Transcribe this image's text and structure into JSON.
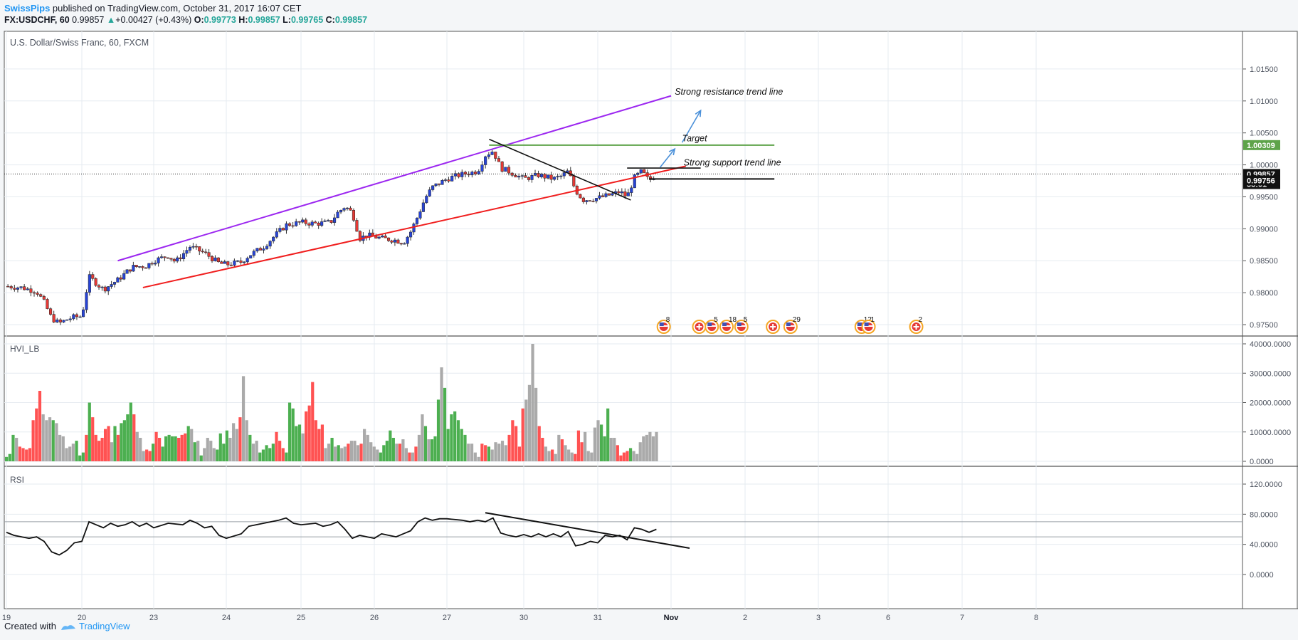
{
  "header": {
    "author": "SwissPips",
    "published": " published on TradingView.com, October 31, 2017 16:07 CET",
    "symbol": "FX:USDCHF, 60",
    "last": "0.99857",
    "change": "+0.00427 (+0.43%)",
    "o_label": "O:",
    "o": "0.99773",
    "h_label": "H:",
    "h": "0.99857",
    "l_label": "L:",
    "l": "0.99765",
    "c_label": "C:",
    "c": "0.99857"
  },
  "footer": {
    "created_with": "Created with",
    "brand": "TradingView"
  },
  "colors": {
    "up": "#2744d8",
    "down": "#e53935",
    "resistance": "#9c27f0",
    "support": "#f01e1e",
    "target": "#5ea34a",
    "arrow": "#4a90d9",
    "vol_up": "#4caf50",
    "vol_down": "#ff5252",
    "vol_neutral": "#aaaaaa"
  },
  "chart_data": [
    {
      "type": "candlestick",
      "title": "U.S. Dollar/Swiss Franc, 60, FXCM",
      "x_ticks": [
        "19",
        "20",
        "23",
        "24",
        "25",
        "26",
        "27",
        "30",
        "31",
        "Nov",
        "2",
        "3",
        "6",
        "7",
        "8"
      ],
      "y_ticks": [
        "1.01500",
        "1.01000",
        "1.00500",
        "1.00000",
        "0.99500",
        "0.99000",
        "0.98500",
        "0.98000",
        "0.97500"
      ],
      "ylim": [
        0.974,
        1.019
      ],
      "price_labels": [
        {
          "value": 1.00309,
          "text": "1.00309",
          "style": "target"
        },
        {
          "value": 0.99857,
          "text": "0.99857",
          "style": "black"
        },
        {
          "value": 0.997,
          "text": "53:01",
          "style": "black"
        },
        {
          "value": 0.99756,
          "text": "0.99756",
          "style": "black"
        }
      ],
      "close_path": [
        [
          0.0,
          0.981
        ],
        [
          0.2,
          0.9808
        ],
        [
          0.4,
          0.9802
        ],
        [
          0.5,
          0.9785
        ],
        [
          0.6,
          0.976
        ],
        [
          0.7,
          0.9752
        ],
        [
          0.8,
          0.9758
        ],
        [
          0.9,
          0.9762
        ],
        [
          1.0,
          0.9763
        ],
        [
          1.1,
          0.9825
        ],
        [
          1.2,
          0.9815
        ],
        [
          1.3,
          0.9805
        ],
        [
          1.5,
          0.982
        ],
        [
          1.7,
          0.984
        ],
        [
          1.9,
          0.9842
        ],
        [
          2.0,
          0.985
        ],
        [
          2.2,
          0.9858
        ],
        [
          2.3,
          0.9848
        ],
        [
          2.5,
          0.9872
        ],
        [
          2.7,
          0.9862
        ],
        [
          2.9,
          0.9846
        ],
        [
          3.0,
          0.9844
        ],
        [
          3.2,
          0.9848
        ],
        [
          3.3,
          0.9858
        ],
        [
          3.5,
          0.9872
        ],
        [
          3.7,
          0.9895
        ],
        [
          3.8,
          0.9906
        ],
        [
          4.0,
          0.991
        ],
        [
          4.2,
          0.9908
        ],
        [
          4.4,
          0.991
        ],
        [
          4.5,
          0.9925
        ],
        [
          4.6,
          0.9935
        ],
        [
          4.7,
          0.9925
        ],
        [
          4.8,
          0.9885
        ],
        [
          4.9,
          0.989
        ],
        [
          5.1,
          0.9885
        ],
        [
          5.3,
          0.9882
        ],
        [
          5.4,
          0.9878
        ],
        [
          5.5,
          0.9895
        ],
        [
          5.6,
          0.992
        ],
        [
          5.7,
          0.9948
        ],
        [
          5.8,
          0.9965
        ],
        [
          6.0,
          0.9978
        ],
        [
          6.1,
          0.9982
        ],
        [
          6.2,
          0.9985
        ],
        [
          6.4,
          0.999
        ],
        [
          6.5,
          1.0015
        ],
        [
          6.6,
          1.0022
        ],
        [
          6.7,
          0.9995
        ],
        [
          6.8,
          0.999
        ],
        [
          7.0,
          0.9978
        ],
        [
          7.2,
          0.9984
        ],
        [
          7.4,
          0.9978
        ],
        [
          7.5,
          0.9982
        ],
        [
          7.6,
          0.999
        ],
        [
          7.7,
          0.996
        ],
        [
          7.8,
          0.9945
        ],
        [
          8.0,
          0.9948
        ],
        [
          8.2,
          0.9954
        ],
        [
          8.3,
          0.9958
        ],
        [
          8.4,
          0.995
        ],
        [
          8.5,
          0.998
        ],
        [
          8.6,
          0.999
        ],
        [
          8.7,
          0.9975
        ],
        [
          8.8,
          0.9985
        ]
      ],
      "annotations": [
        {
          "text": "Strong resistance trend line",
          "x": 9.05,
          "y": 1.011
        },
        {
          "text": "Target",
          "x": 9.15,
          "y": 1.0037
        },
        {
          "text": "Strong support trend line",
          "x": 9.17,
          "y": 0.9999
        }
      ],
      "lines": [
        {
          "name": "resistance",
          "from": [
            1.5,
            0.985
          ],
          "to": [
            9.0,
            1.0108
          ]
        },
        {
          "name": "support",
          "from": [
            1.85,
            0.9808
          ],
          "to": [
            9.2,
            0.9998
          ]
        },
        {
          "name": "target",
          "from": [
            6.55,
            1.00309
          ],
          "to": [
            10.4,
            1.00309
          ]
        },
        {
          "name": "falling-wedge",
          "from": [
            6.55,
            1.004
          ],
          "to": [
            8.45,
            0.9945
          ]
        },
        {
          "name": "range-top",
          "from": [
            8.4,
            0.9995
          ],
          "to": [
            9.4,
            0.9995
          ]
        },
        {
          "name": "range-bottom",
          "from": [
            8.7,
            0.9978
          ],
          "to": [
            10.4,
            0.9978
          ]
        }
      ],
      "arrows": [
        {
          "from": [
            8.85,
            0.9996
          ],
          "to": [
            9.05,
            1.0025
          ]
        },
        {
          "from": [
            9.15,
            1.0035
          ],
          "to": [
            9.4,
            1.0085
          ]
        }
      ],
      "events": [
        {
          "x": 8.9,
          "label": "8",
          "kind": "us"
        },
        {
          "x": 9.38,
          "label": "",
          "kind": "ch"
        },
        {
          "x": 9.55,
          "label": "5",
          "kind": "us"
        },
        {
          "x": 9.75,
          "label": "18",
          "kind": "us"
        },
        {
          "x": 9.95,
          "label": "5",
          "kind": "us"
        },
        {
          "x": 10.38,
          "label": "",
          "kind": "ch"
        },
        {
          "x": 10.62,
          "label": "29",
          "kind": "us"
        },
        {
          "x": 11.62,
          "label": "12",
          "kind": "us"
        },
        {
          "x": 11.72,
          "label": "1",
          "kind": "us"
        },
        {
          "x": 12.38,
          "label": "2",
          "kind": "ch"
        }
      ]
    },
    {
      "type": "bar",
      "title": "HVI_LB",
      "y_ticks": [
        "40000.0000",
        "30000.0000",
        "20000.0000",
        "10000.0000",
        "0.0000"
      ],
      "ylim": [
        0,
        40000
      ],
      "values": [
        1500,
        2500,
        9000,
        8000,
        5000,
        4500,
        4000,
        4500,
        14000,
        18000,
        24000,
        16000,
        14000,
        15000,
        14000,
        13000,
        9000,
        8500,
        4500,
        5000,
        6000,
        7000,
        2000,
        3000,
        9000,
        20000,
        15000,
        9000,
        7000,
        8000,
        11000,
        12000,
        6500,
        12000,
        9000,
        13000,
        14000,
        16000,
        20000,
        16000,
        10000,
        8000,
        3500,
        4000,
        3500,
        6000,
        10000,
        8000,
        5000,
        8500,
        9000,
        8500,
        8500,
        8000,
        9000,
        9500,
        12000,
        11000,
        6500,
        7000,
        2000,
        4500,
        8000,
        7000,
        4500,
        4000,
        9500,
        6000,
        10500,
        8000,
        13000,
        11000,
        15000,
        29000,
        14000,
        9000,
        6000,
        7000,
        3000,
        4000,
        5500,
        4500,
        6000,
        10000,
        7000,
        4500,
        3000,
        20000,
        18000,
        12000,
        12500,
        9500,
        17000,
        19000,
        27000,
        14000,
        11000,
        12500,
        4500,
        6000,
        8000,
        5000,
        5500,
        4500,
        5000,
        6000,
        7000,
        7000,
        5500,
        6000,
        11000,
        9000,
        6500,
        5000,
        4000,
        3000,
        5500,
        7000,
        10500,
        8000,
        6000,
        6000,
        7500,
        4500,
        3000,
        3000,
        5000,
        9000,
        16000,
        12000,
        7500,
        7500,
        8500,
        21000,
        32000,
        25000,
        11000,
        16000,
        17000,
        14000,
        11000,
        9000,
        6000,
        6000,
        3000,
        1500,
        6000,
        5500,
        5000,
        4000,
        6500,
        6000,
        7000,
        5500,
        9000,
        14000,
        12000,
        5000,
        18000,
        21000,
        26000,
        40000,
        25000,
        12000,
        8000,
        5000,
        3500,
        4000,
        2500,
        9000,
        7500,
        5500,
        4000,
        3000,
        2500,
        10500,
        6500,
        10000,
        3500,
        3000,
        11500,
        14000,
        12500,
        8500,
        18000,
        8000,
        8000,
        5500,
        2000,
        3000,
        3500,
        4500,
        3500,
        2500,
        6500,
        8500,
        9000,
        10000,
        8500,
        10000
      ],
      "colors": "gggnrrrrrrrnnngnnnnnngggrgrrrrrrngrggggrnnnrrgrrgggggrrrgngngnnnnggggnnnrnngnngggggrrrgggggnrrrrrrnngngnnrnnnrnnnnngggggnrnnrnrnngngggngggggggnnnnrrgnnnnnrrrrrnnnnrrnnrnnrnnnrrrnnnnngggnnrrrrgnnn"
    },
    {
      "type": "line",
      "title": "RSI",
      "y_ticks": [
        "120.0000",
        "80.0000",
        "40.0000",
        "0.0000"
      ],
      "ylim": [
        -14,
        135
      ],
      "points": [
        [
          0.0,
          56
        ],
        [
          0.1,
          52
        ],
        [
          0.2,
          50
        ],
        [
          0.3,
          48
        ],
        [
          0.4,
          50
        ],
        [
          0.5,
          44
        ],
        [
          0.6,
          30
        ],
        [
          0.7,
          26
        ],
        [
          0.8,
          32
        ],
        [
          0.9,
          42
        ],
        [
          1.0,
          44
        ],
        [
          1.1,
          70
        ],
        [
          1.2,
          66
        ],
        [
          1.3,
          62
        ],
        [
          1.4,
          68
        ],
        [
          1.5,
          64
        ],
        [
          1.6,
          66
        ],
        [
          1.7,
          70
        ],
        [
          1.8,
          64
        ],
        [
          1.9,
          68
        ],
        [
          2.0,
          62
        ],
        [
          2.2,
          68
        ],
        [
          2.4,
          66
        ],
        [
          2.5,
          72
        ],
        [
          2.6,
          68
        ],
        [
          2.7,
          62
        ],
        [
          2.8,
          64
        ],
        [
          2.9,
          52
        ],
        [
          3.0,
          48
        ],
        [
          3.2,
          54
        ],
        [
          3.3,
          64
        ],
        [
          3.4,
          66
        ],
        [
          3.5,
          68
        ],
        [
          3.6,
          70
        ],
        [
          3.7,
          72
        ],
        [
          3.8,
          75
        ],
        [
          3.9,
          68
        ],
        [
          4.0,
          66
        ],
        [
          4.2,
          68
        ],
        [
          4.3,
          64
        ],
        [
          4.4,
          66
        ],
        [
          4.5,
          70
        ],
        [
          4.6,
          60
        ],
        [
          4.7,
          48
        ],
        [
          4.8,
          52
        ],
        [
          4.9,
          50
        ],
        [
          5.0,
          48
        ],
        [
          5.1,
          54
        ],
        [
          5.2,
          52
        ],
        [
          5.3,
          50
        ],
        [
          5.4,
          54
        ],
        [
          5.5,
          58
        ],
        [
          5.6,
          70
        ],
        [
          5.7,
          75
        ],
        [
          5.8,
          72
        ],
        [
          5.9,
          74
        ],
        [
          6.0,
          74
        ],
        [
          6.2,
          72
        ],
        [
          6.3,
          70
        ],
        [
          6.4,
          72
        ],
        [
          6.5,
          70
        ],
        [
          6.6,
          75
        ],
        [
          6.7,
          55
        ],
        [
          6.8,
          52
        ],
        [
          6.9,
          50
        ],
        [
          7.0,
          53
        ],
        [
          7.1,
          50
        ],
        [
          7.2,
          54
        ],
        [
          7.3,
          50
        ],
        [
          7.4,
          54
        ],
        [
          7.5,
          50
        ],
        [
          7.6,
          57
        ],
        [
          7.7,
          38
        ],
        [
          7.8,
          40
        ],
        [
          7.9,
          44
        ],
        [
          8.0,
          42
        ],
        [
          8.1,
          52
        ],
        [
          8.2,
          50
        ],
        [
          8.3,
          52
        ],
        [
          8.4,
          46
        ],
        [
          8.5,
          62
        ],
        [
          8.6,
          60
        ],
        [
          8.7,
          56
        ],
        [
          8.8,
          60
        ]
      ],
      "trend_line": {
        "from": [
          6.5,
          82
        ],
        "to": [
          9.25,
          35
        ]
      },
      "level_lines": [
        70,
        50
      ]
    }
  ]
}
